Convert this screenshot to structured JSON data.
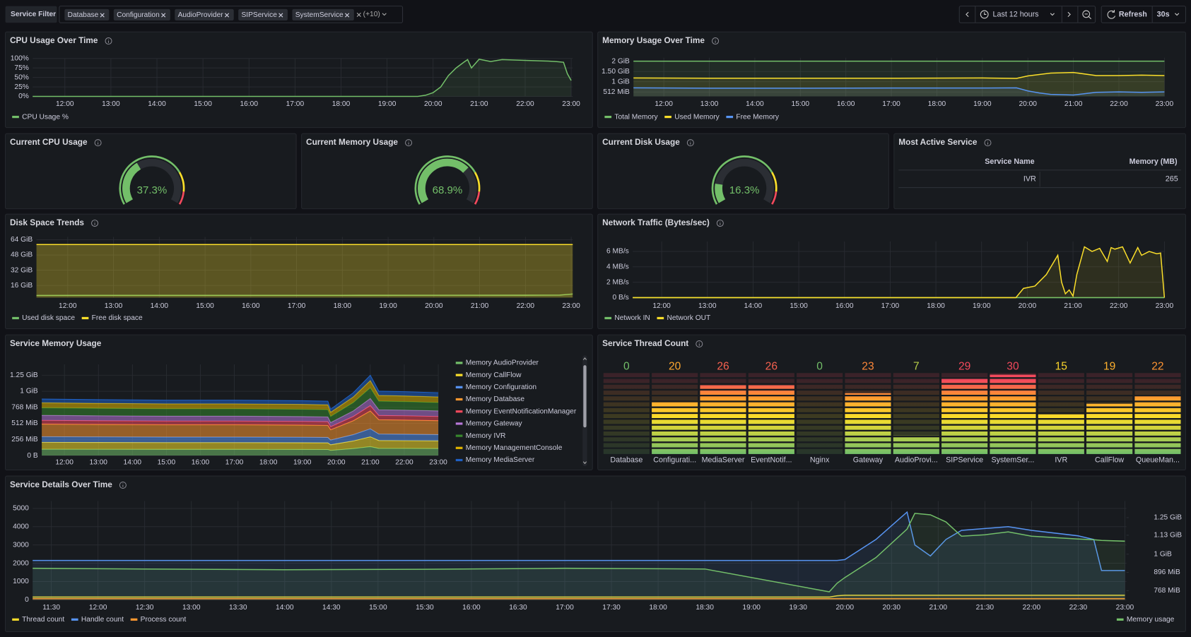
{
  "toolbar": {
    "label": "Service Filter",
    "filters": [
      "Database",
      "Configuration",
      "AudioProvider",
      "SIPService",
      "SystemService"
    ],
    "more": "(+10)",
    "time_range": "Last 12 hours",
    "refresh": "Refresh",
    "interval": "30s"
  },
  "table": {
    "title": "Most Active Service",
    "columns": [
      "Service Name",
      "Memory (MB)"
    ],
    "rows": [
      [
        "IVR",
        265
      ]
    ]
  },
  "chart_data": [
    {
      "type": "area",
      "title": "CPU Usage Over Time",
      "x": [
        "11:18",
        "19:40",
        "19:50",
        "20:00",
        "20:10",
        "20:20",
        "20:30",
        "20:40",
        "20:45",
        "20:50",
        "21:00",
        "21:15",
        "21:30",
        "22:00",
        "22:30",
        "22:40",
        "22:50",
        "22:55",
        "23:00"
      ],
      "series": [
        {
          "name": "CPU Usage %",
          "color": "#73bf69",
          "values": [
            0,
            0,
            3,
            10,
            25,
            55,
            75,
            90,
            97,
            75,
            98,
            92,
            97,
            95,
            93,
            92,
            90,
            60,
            42
          ]
        }
      ],
      "xlim": [
        "11:18",
        "23:02"
      ],
      "xticks": [
        "12:00",
        "13:00",
        "14:00",
        "15:00",
        "16:00",
        "17:00",
        "18:00",
        "19:00",
        "20:00",
        "21:00",
        "22:00",
        "23:00"
      ],
      "ylim": [
        0,
        100
      ],
      "yticks": [
        {
          "value": 0,
          "label": "0%"
        },
        {
          "value": 25,
          "label": "25%"
        },
        {
          "value": 50,
          "label": "50%"
        },
        {
          "value": 75,
          "label": "75%"
        },
        {
          "value": 100,
          "label": "100%"
        }
      ],
      "grid": true
    },
    {
      "type": "area",
      "title": "Memory Usage Over Time",
      "x": [
        "11:20",
        "13:00",
        "15:00",
        "17:00",
        "19:00",
        "19:45",
        "20:00",
        "20:15",
        "20:30",
        "21:00",
        "21:30",
        "22:00",
        "22:30",
        "23:00"
      ],
      "series": [
        {
          "name": "Total Memory",
          "color": "#73bf69",
          "values": [
            2,
            2,
            2,
            2,
            2,
            2,
            2,
            2,
            2,
            2,
            2,
            2,
            2,
            2
          ]
        },
        {
          "name": "Used Memory",
          "color": "#fade2a",
          "values": [
            1.18,
            1.17,
            1.17,
            1.17,
            1.18,
            1.16,
            1.28,
            1.35,
            1.42,
            1.45,
            1.3,
            1.3,
            1.32,
            1.3
          ]
        },
        {
          "name": "Free Memory",
          "color": "#5794f2",
          "values": [
            0.7,
            0.68,
            0.68,
            0.69,
            0.69,
            0.7,
            0.55,
            0.45,
            0.38,
            0.35,
            0.48,
            0.5,
            0.48,
            0.5
          ]
        }
      ],
      "xlim": [
        "11:20",
        "23:00"
      ],
      "xticks": [
        "12:00",
        "13:00",
        "14:00",
        "15:00",
        "16:00",
        "17:00",
        "18:00",
        "19:00",
        "20:00",
        "21:00",
        "22:00",
        "23:00"
      ],
      "ylim": [
        0.28,
        2.17
      ],
      "yticks": [
        {
          "value": 0.5,
          "label": "512 MiB"
        },
        {
          "value": 1,
          "label": "1 GiB"
        },
        {
          "value": 1.5,
          "label": "1.50 GiB"
        },
        {
          "value": 2,
          "label": "2 GiB"
        }
      ],
      "grid": true
    },
    {
      "type": "gauge",
      "title": "Current CPU Usage",
      "value": 37.3,
      "value_label": "37.3%",
      "ylim": [
        0,
        100
      ]
    },
    {
      "type": "gauge",
      "title": "Current Memory Usage",
      "value": 68.9,
      "value_label": "68.9%",
      "ylim": [
        0,
        100
      ]
    },
    {
      "type": "gauge",
      "title": "Current Disk Usage",
      "value": 16.3,
      "value_label": "16.3%",
      "ylim": [
        0,
        100
      ]
    },
    {
      "type": "area",
      "title": "Disk Space Trends",
      "x": [
        "11:19",
        "14:00",
        "18:00",
        "22:00",
        "22:45",
        "23:02"
      ],
      "series": [
        {
          "name": "Used disk space",
          "color": "#73bf69",
          "values": [
            5.5,
            5.6,
            5.6,
            5.7,
            5.8,
            7
          ]
        },
        {
          "name": "Free disk space",
          "color": "#fade2a",
          "values": [
            59,
            59,
            59,
            59,
            59,
            59
          ]
        }
      ],
      "xlim": [
        "11:19",
        "23:02"
      ],
      "xticks": [
        "12:00",
        "13:00",
        "14:00",
        "15:00",
        "16:00",
        "17:00",
        "18:00",
        "19:00",
        "20:00",
        "21:00",
        "22:00",
        "23:00"
      ],
      "ylim": [
        3.2,
        67
      ],
      "yticks": [
        {
          "value": 16,
          "label": "16 GiB"
        },
        {
          "value": 32,
          "label": "32 GiB"
        },
        {
          "value": 48,
          "label": "48 GiB"
        },
        {
          "value": 64,
          "label": "64 GiB"
        }
      ],
      "grid": true
    },
    {
      "type": "area",
      "title": "Network Traffic (Bytes/sec)",
      "x": [
        "11:22",
        "19:45",
        "19:55",
        "20:10",
        "20:25",
        "20:40",
        "20:45",
        "20:50",
        "20:55",
        "21:00",
        "21:05",
        "21:15",
        "21:25",
        "21:35",
        "21:45",
        "21:50",
        "21:55",
        "22:05",
        "22:15",
        "22:25",
        "22:30",
        "22:40",
        "22:50",
        "22:55",
        "23:00"
      ],
      "series": [
        {
          "name": "Network IN",
          "color": "#73bf69",
          "values": [
            0,
            0,
            0,
            0,
            0,
            0,
            0,
            0,
            0,
            0,
            0,
            0,
            0,
            0,
            0,
            0,
            0,
            0,
            0,
            0,
            0,
            0,
            0,
            0,
            0
          ]
        },
        {
          "name": "Network OUT",
          "color": "#fade2a",
          "values": [
            0,
            0,
            1.2,
            1.5,
            3,
            5.5,
            2,
            0.5,
            1,
            0.2,
            3,
            6.6,
            6,
            6.4,
            4.7,
            6.5,
            6.3,
            6.6,
            4.5,
            6.5,
            5.5,
            6,
            5.7,
            5.8,
            0
          ]
        }
      ],
      "xlim": [
        "11:22",
        "23:00"
      ],
      "xticks": [
        "12:00",
        "13:00",
        "14:00",
        "15:00",
        "16:00",
        "17:00",
        "18:00",
        "19:00",
        "20:00",
        "21:00",
        "22:00",
        "23:00"
      ],
      "ylim": [
        0,
        7.3
      ],
      "yticks": [
        {
          "value": 0,
          "label": "0 B/s"
        },
        {
          "value": 2,
          "label": "2 MB/s"
        },
        {
          "value": 4,
          "label": "4 MB/s"
        },
        {
          "value": 6,
          "label": "6 MB/s"
        }
      ],
      "grid": true
    },
    {
      "type": "stacked_area",
      "title": "Service Memory Usage",
      "x": [
        "11:20",
        "13:00",
        "15:00",
        "17:00",
        "19:00",
        "19:45",
        "19:50",
        "20:30",
        "21:00",
        "21:15",
        "22:00",
        "23:00"
      ],
      "series": [
        {
          "name": "Memory AudioProvider",
          "color": "#73bf69",
          "values": [
            100,
            99,
            98,
            98,
            97,
            96,
            82,
            111,
            142,
            114,
            113,
            111
          ]
        },
        {
          "name": "Memory CallFlow",
          "color": "#fade2a",
          "values": [
            110,
            109,
            108,
            108,
            107,
            106,
            90,
            122,
            156,
            125,
            124,
            122
          ]
        },
        {
          "name": "Memory Configuration",
          "color": "#5794f2",
          "values": [
            90,
            89,
            88,
            88,
            87,
            86,
            74,
            100,
            128,
            103,
            102,
            100
          ]
        },
        {
          "name": "Memory Database",
          "color": "#ff9830",
          "values": [
            200,
            198,
            196,
            196,
            194,
            192,
            164,
            222,
            284,
            228,
            226,
            222
          ]
        },
        {
          "name": "Memory EventNotificationManager",
          "color": "#f2495c",
          "values": [
            60,
            59,
            59,
            59,
            58,
            58,
            49,
            67,
            85,
            68,
            68,
            67
          ]
        },
        {
          "name": "Memory Gateway",
          "color": "#b877d9",
          "values": [
            80,
            79,
            78,
            78,
            78,
            77,
            66,
            89,
            114,
            91,
            90,
            89
          ]
        },
        {
          "name": "Memory IVR",
          "color": "#37872d",
          "values": [
            120,
            119,
            118,
            118,
            116,
            115,
            98,
            133,
            170,
            137,
            136,
            133
          ]
        },
        {
          "name": "Memory ManagementConsole",
          "color": "#e0b400",
          "values": [
            80,
            79,
            78,
            78,
            78,
            77,
            66,
            89,
            114,
            91,
            90,
            89
          ]
        },
        {
          "name": "Memory MediaServer",
          "color": "#1f60c4",
          "values": [
            60,
            59,
            59,
            59,
            58,
            58,
            49,
            67,
            85,
            68,
            68,
            67
          ]
        }
      ],
      "xlim": [
        "11:20",
        "23:00"
      ],
      "xticks": [
        "12:00",
        "13:00",
        "14:00",
        "15:00",
        "16:00",
        "17:00",
        "18:00",
        "19:00",
        "20:00",
        "21:00",
        "22:00",
        "23:00"
      ],
      "ylim": [
        0,
        1451
      ],
      "yticks": [
        {
          "value": 0,
          "label": "0 B"
        },
        {
          "value": 256,
          "label": "256 MiB"
        },
        {
          "value": 512,
          "label": "512 MiB"
        },
        {
          "value": 768,
          "label": "768 MiB"
        },
        {
          "value": 1024,
          "label": "1 GiB"
        },
        {
          "value": 1280,
          "label": "1.25 GiB"
        }
      ],
      "grid": true
    },
    {
      "type": "bar_gauge",
      "title": "Service Thread Count",
      "categories": [
        "Database",
        "Configurati...",
        "MediaServer",
        "EventNotif...",
        "Nginx",
        "Gateway",
        "AudioProvi...",
        "SIPService",
        "SystemSer...",
        "IVR",
        "CallFlow",
        "QueueMan..."
      ],
      "values": [
        0,
        20,
        26,
        26,
        0,
        23,
        7,
        29,
        30,
        15,
        19,
        22
      ],
      "ylim": [
        0,
        31
      ]
    },
    {
      "type": "area",
      "title": "Service Details Over Time",
      "x": [
        "11:18",
        "12:30",
        "14:00",
        "15:30",
        "17:00",
        "18:30",
        "19:50",
        "19:55",
        "20:00",
        "20:20",
        "20:40",
        "20:45",
        "20:55",
        "21:05",
        "21:15",
        "21:30",
        "21:45",
        "22:00",
        "22:30",
        "22:40",
        "22:45",
        "23:00"
      ],
      "series": [
        {
          "name": "Thread count",
          "color": "#fade2a",
          "values": [
            150,
            150,
            150,
            150,
            150,
            150,
            150,
            220,
            250,
            250,
            250,
            250,
            250,
            250,
            250,
            250,
            250,
            250,
            250,
            250,
            250,
            250
          ]
        },
        {
          "name": "Handle count",
          "color": "#5794f2",
          "values": [
            2150,
            2150,
            2150,
            2150,
            2150,
            2150,
            2150,
            2150,
            2200,
            3300,
            4800,
            3000,
            2400,
            3300,
            3800,
            3900,
            4000,
            3800,
            3500,
            3300,
            1600,
            1600
          ]
        },
        {
          "name": "Process count",
          "color": "#ff9830",
          "values": [
            60,
            60,
            60,
            60,
            60,
            60,
            60,
            60,
            60,
            60,
            60,
            60,
            60,
            60,
            60,
            60,
            60,
            60,
            60,
            60,
            60,
            60
          ]
        },
        {
          "name": "Memory usage",
          "color": "#73bf69",
          "axis": "y2",
          "values": [
            925,
            920,
            915,
            918,
            925,
            920,
            760,
            820,
            860,
            1000,
            1200,
            1310,
            1300,
            1250,
            1150,
            1160,
            1180,
            1150,
            1130,
            1125,
            1120,
            1115
          ]
        }
      ],
      "xlim": [
        "11:18",
        "23:01"
      ],
      "xticks": [
        "11:30",
        "12:00",
        "12:30",
        "13:00",
        "13:30",
        "14:00",
        "14:30",
        "15:00",
        "15:30",
        "16:00",
        "16:30",
        "17:00",
        "17:30",
        "18:00",
        "18:30",
        "19:00",
        "19:30",
        "20:00",
        "20:30",
        "21:00",
        "21:30",
        "22:00",
        "22:30",
        "23:00"
      ],
      "ylim": [
        0,
        5400
      ],
      "yticks": [
        0,
        1000,
        2000,
        3000,
        4000,
        5000
      ],
      "y2lim": [
        704,
        1396
      ],
      "y2ticks": [
        {
          "value": 768,
          "label": "768 MiB"
        },
        {
          "value": 896,
          "label": "896 MiB"
        },
        {
          "value": 1024,
          "label": "1 GiB"
        },
        {
          "value": 1157,
          "label": "1.13 GiB"
        },
        {
          "value": 1280,
          "label": "1.25 GiB"
        }
      ],
      "grid": true
    }
  ]
}
